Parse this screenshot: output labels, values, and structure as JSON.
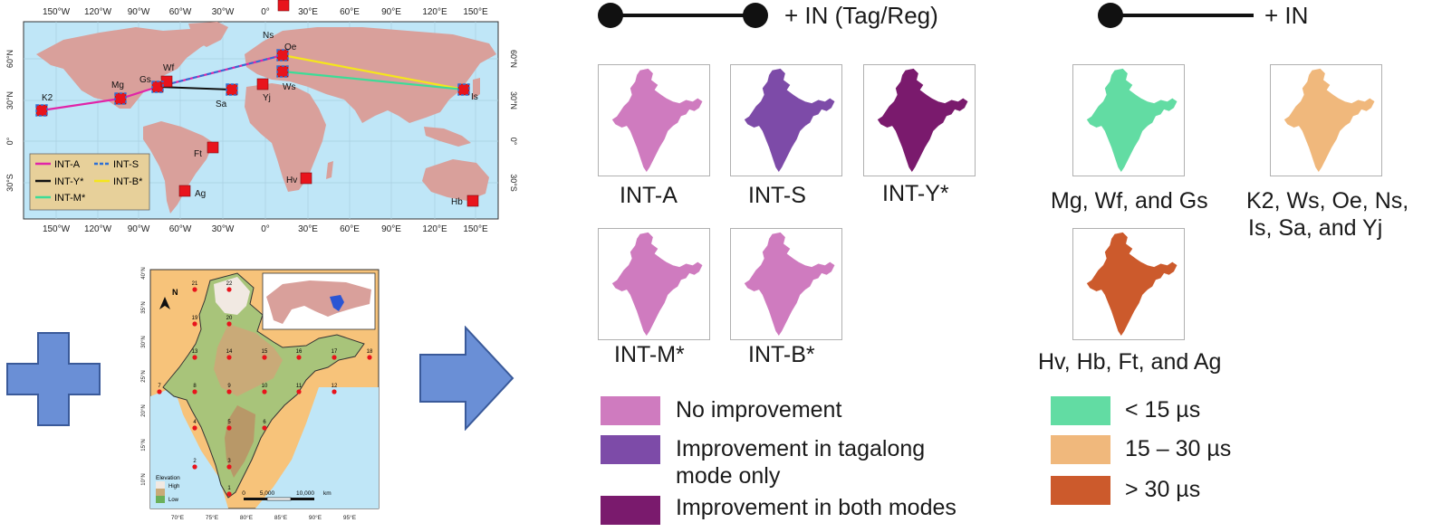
{
  "world_map": {
    "lon_ticks": [
      "150°W",
      "120°W",
      "90°W",
      "60°W",
      "30°W",
      "0°",
      "30°E",
      "60°E",
      "90°E",
      "120°E",
      "150°E"
    ],
    "lat_ticks_left": [
      "60°N",
      "30°N",
      "0°",
      "30°S"
    ],
    "lat_ticks_right": [
      "60°N",
      "30°N",
      "0°",
      "30°S"
    ],
    "sites": [
      "K2",
      "Mg",
      "Gs",
      "Wf",
      "Sa",
      "Yj",
      "Ns",
      "Oe",
      "Ws",
      "Is",
      "Ft",
      "Hv",
      "Ag",
      "Hb"
    ],
    "legend": [
      "INT-A",
      "INT-S",
      "INT-Y*",
      "INT-B*",
      "INT-M*"
    ],
    "colors": {
      "int_a": "#e024a8",
      "int_s": "#2c6fd6",
      "int_y": "#111111",
      "int_b": "#f5e61c",
      "int_m": "#3ddc97",
      "land": "#d9a09b",
      "ocean": "#bfe6f7",
      "site": "#e8141c"
    }
  },
  "india_map": {
    "north_label": "N",
    "station_numbers": [
      "1",
      "2",
      "3",
      "4",
      "5",
      "6",
      "7",
      "8",
      "9",
      "10",
      "11",
      "12",
      "13",
      "14",
      "15",
      "16",
      "17",
      "18",
      "19",
      "20",
      "21",
      "22"
    ],
    "lat_ticks": [
      "40°N",
      "35°N",
      "30°N",
      "25°N",
      "20°N",
      "15°N",
      "10°N"
    ],
    "lon_ticks": [
      "70°E",
      "75°E",
      "80°E",
      "85°E",
      "90°E",
      "95°E"
    ],
    "legend_title": "Elevation",
    "legend_high": "High",
    "legend_low": "Low",
    "scale_labels": [
      "0",
      "5,000",
      "10,000"
    ],
    "scale_unit": "km"
  },
  "header_left": {
    "label": "+ IN (Tag/Reg)"
  },
  "header_right": {
    "label": "+ IN"
  },
  "thumbnails_left": [
    {
      "label": "INT-A",
      "color": "#cf7bbf"
    },
    {
      "label": "INT-S",
      "color": "#7d4ba8"
    },
    {
      "label": "INT-Y*",
      "color": "#7a1a6d"
    },
    {
      "label": "INT-M*",
      "color": "#cf7bbf"
    },
    {
      "label": "INT-B*",
      "color": "#cf7bbf"
    }
  ],
  "thumbnails_right": [
    {
      "label": "Mg, Wf, and Gs",
      "color": "#62dca3"
    },
    {
      "label_line1": "K2, Ws, Oe, Ns,",
      "label_line2": "Is, Sa, and Yj",
      "color": "#f0b87c"
    },
    {
      "label": "Hv, Hb, Ft, and Ag",
      "color": "#cc5a2c"
    }
  ],
  "legend_left": [
    {
      "text": "No improvement",
      "color": "#cf7bbf"
    },
    {
      "text_line1": "Improvement in tagalong",
      "text_line2": "mode only",
      "color": "#7d4ba8"
    },
    {
      "text": "Improvement in both modes",
      "color": "#7a1a6d"
    }
  ],
  "legend_right": [
    {
      "text": "< 15 µs",
      "color": "#62dca3"
    },
    {
      "text": "15 – 30 µs",
      "color": "#f0b87c"
    },
    {
      "text": "> 30 µs",
      "color": "#cc5a2c"
    }
  ]
}
